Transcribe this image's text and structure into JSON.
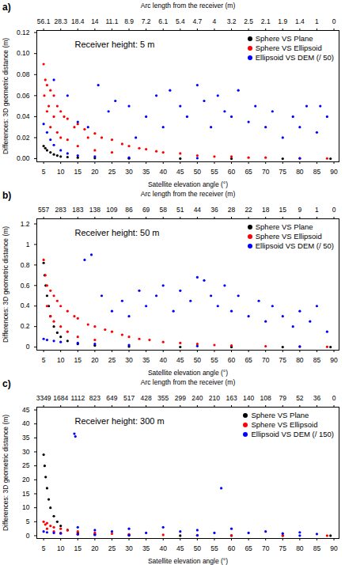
{
  "chart_data": [
    {
      "type": "scatter",
      "title": "a)",
      "annotations": [
        "Receiver height: 5 m"
      ],
      "xlabel": "Satellite elevation angle (°)",
      "ylabel": "Differences: 3D geometric distance (m)",
      "x2label": "Arc length from the receiver (m)",
      "x2ticks": [
        {
          "value": 5,
          "label": "56.1"
        },
        {
          "value": 10,
          "label": "28.3"
        },
        {
          "value": 15,
          "label": "18.4"
        },
        {
          "value": 20,
          "label": "14"
        },
        {
          "value": 25,
          "label": "11.1"
        },
        {
          "value": 30,
          "label": "8.9"
        },
        {
          "value": 35,
          "label": "7.2"
        },
        {
          "value": 40,
          "label": "6.1"
        },
        {
          "value": 45,
          "label": "5.4"
        },
        {
          "value": 50,
          "label": "4.7"
        },
        {
          "value": 55,
          "label": "4"
        },
        {
          "value": 60,
          "label": "3.2"
        },
        {
          "value": 65,
          "label": "2.5"
        },
        {
          "value": 70,
          "label": "2.1"
        },
        {
          "value": 75,
          "label": "1.9"
        },
        {
          "value": 80,
          "label": "1.4"
        },
        {
          "value": 85,
          "label": "1"
        },
        {
          "value": 90,
          "label": "0"
        }
      ],
      "xlim": [
        3,
        91.5
      ],
      "xticks": [
        5,
        10,
        15,
        20,
        25,
        30,
        35,
        40,
        45,
        50,
        55,
        60,
        65,
        70,
        75,
        80,
        85,
        90
      ],
      "ylim": [
        -0.003,
        0.122
      ],
      "yticks": [
        {
          "value": 0,
          "label": "0.00"
        },
        0.02,
        0.04,
        0.06,
        0.08,
        {
          "value": 0.1,
          "label": "0.10"
        },
        0.12
      ],
      "legend": "top-right",
      "series": [
        {
          "name": "Sphere VS Plane",
          "color": "#000000",
          "marker": "circle",
          "x": [
            5,
            5.5,
            6,
            7,
            8,
            9,
            10,
            12,
            15,
            20,
            30,
            45,
            60,
            75,
            89
          ],
          "values": [
            0.012,
            0.01,
            0.008,
            0.006,
            0.004,
            0.003,
            0.002,
            0.0015,
            0.001,
            0.0005,
            0.0002,
            0.0001,
            0,
            0,
            0
          ]
        },
        {
          "name": "Sphere VS Ellipsoid",
          "color": "#ff0000",
          "marker": "circle",
          "x": [
            5,
            5.2,
            5.5,
            6,
            6,
            6.5,
            7,
            7,
            8,
            8,
            9,
            9,
            10,
            10,
            11,
            12,
            12,
            14,
            15,
            15,
            17,
            18,
            20,
            20,
            22,
            25,
            25,
            28,
            30,
            33,
            35,
            38,
            40,
            45,
            50,
            55,
            60,
            65,
            70,
            80,
            88
          ],
          "values": [
            0.09,
            0.06,
            0.075,
            0.07,
            0.045,
            0.05,
            0.065,
            0.03,
            0.06,
            0.04,
            0.05,
            0.025,
            0.045,
            0.02,
            0.04,
            0.038,
            0.018,
            0.03,
            0.033,
            0.012,
            0.028,
            0.02,
            0.024,
            0.008,
            0.02,
            0.018,
            0.006,
            0.014,
            0.012,
            0.01,
            0.009,
            0.007,
            0.006,
            0.005,
            0.003,
            0.002,
            0.002,
            0.001,
            0.001,
            0.0005,
            0.0002
          ]
        },
        {
          "name": "Ellipsoid VS DEM (/ 50)",
          "color": "#0000ff",
          "marker": "circle",
          "x": [
            5,
            6,
            7,
            8,
            10,
            12,
            15,
            20,
            30,
            50,
            80,
            8,
            12,
            15,
            18,
            21,
            24,
            26,
            30,
            32,
            35,
            38,
            40,
            42,
            45,
            47,
            50,
            52,
            54,
            56,
            58,
            60,
            62,
            65,
            67,
            70,
            72,
            75,
            78,
            80,
            82,
            85,
            86,
            88
          ],
          "values": [
            0.033,
            0.025,
            0.018,
            0.013,
            0.008,
            0.005,
            0.003,
            0.002,
            0.001,
            0.0005,
            0.0002,
            0.075,
            0.06,
            0.035,
            0.03,
            0.07,
            0.045,
            0.055,
            0.05,
            0.02,
            0.04,
            0.06,
            0.03,
            0.065,
            0.05,
            0.04,
            0.07,
            0.055,
            0.03,
            0.06,
            0.045,
            0.04,
            0.065,
            0.035,
            0.05,
            0.03,
            0.045,
            0.02,
            0.04,
            0.03,
            0.05,
            0.025,
            0.05,
            0.04
          ]
        }
      ]
    },
    {
      "type": "scatter",
      "title": "b)",
      "annotations": [
        "Receiver height: 50 m"
      ],
      "xlabel": "Satellite elevation angle (°)",
      "ylabel": "Differences: 3D geometric distance (m)",
      "x2label": "Arc length from the receiver (m)",
      "x2ticks": [
        {
          "value": 5,
          "label": "557"
        },
        {
          "value": 10,
          "label": "283"
        },
        {
          "value": 15,
          "label": "183"
        },
        {
          "value": 20,
          "label": "138"
        },
        {
          "value": 25,
          "label": "109"
        },
        {
          "value": 30,
          "label": "86"
        },
        {
          "value": 35,
          "label": "69"
        },
        {
          "value": 40,
          "label": "58"
        },
        {
          "value": 45,
          "label": "51"
        },
        {
          "value": 50,
          "label": "44"
        },
        {
          "value": 55,
          "label": "36"
        },
        {
          "value": 60,
          "label": "28"
        },
        {
          "value": 65,
          "label": "22"
        },
        {
          "value": 70,
          "label": "18"
        },
        {
          "value": 75,
          "label": "15"
        },
        {
          "value": 80,
          "label": "9"
        },
        {
          "value": 85,
          "label": "1"
        },
        {
          "value": 90,
          "label": "0"
        }
      ],
      "xlim": [
        3,
        91.5
      ],
      "xticks": [
        5,
        10,
        15,
        20,
        25,
        30,
        35,
        40,
        45,
        50,
        55,
        60,
        65,
        70,
        75,
        80,
        85,
        90
      ],
      "ylim": [
        -0.03,
        1.25
      ],
      "yticks": [
        0,
        0.2,
        0.4,
        0.6,
        0.8,
        1,
        1.2
      ],
      "legend": "top-right",
      "series": [
        {
          "name": "Sphere VS Plane",
          "color": "#000000",
          "marker": "circle",
          "x": [
            5,
            5.3,
            5.6,
            6,
            6.5,
            7,
            8,
            9,
            10,
            12,
            15,
            20,
            30,
            45,
            60,
            75,
            89
          ],
          "values": [
            0.82,
            0.7,
            0.6,
            0.5,
            0.4,
            0.3,
            0.2,
            0.14,
            0.1,
            0.06,
            0.03,
            0.015,
            0.005,
            0.001,
            0,
            0,
            0
          ]
        },
        {
          "name": "Sphere VS Ellipsoid",
          "color": "#ff0000",
          "marker": "circle",
          "x": [
            5,
            5.5,
            6,
            6,
            7,
            7,
            8,
            8,
            9,
            10,
            10,
            12,
            12,
            14,
            15,
            15,
            18,
            20,
            20,
            23,
            25,
            28,
            30,
            33,
            36,
            40,
            45,
            50,
            55,
            60,
            70,
            80,
            88
          ],
          "values": [
            0.85,
            0.7,
            0.6,
            0.4,
            0.55,
            0.3,
            0.5,
            0.25,
            0.45,
            0.4,
            0.2,
            0.35,
            0.15,
            0.3,
            0.28,
            0.1,
            0.22,
            0.2,
            0.07,
            0.17,
            0.15,
            0.12,
            0.1,
            0.08,
            0.07,
            0.05,
            0.04,
            0.03,
            0.02,
            0.015,
            0.008,
            0.004,
            0.002
          ]
        },
        {
          "name": "Ellipsoid VS DEM (/ 50)",
          "color": "#0000ff",
          "marker": "circle",
          "x": [
            5,
            6,
            8,
            10,
            15,
            20,
            30,
            50,
            80,
            17,
            19,
            22,
            25,
            28,
            30,
            33,
            35,
            38,
            40,
            43,
            45,
            48,
            50,
            52,
            54,
            56,
            58,
            60,
            62,
            65,
            68,
            70,
            72,
            75,
            78,
            80,
            83,
            85,
            88
          ],
          "values": [
            0.08,
            0.07,
            0.06,
            0.05,
            0.04,
            0.03,
            0.02,
            0.01,
            0.005,
            0.85,
            0.9,
            0.5,
            0.35,
            0.45,
            0.3,
            0.55,
            0.4,
            0.5,
            0.6,
            0.35,
            0.55,
            0.45,
            0.68,
            0.65,
            0.5,
            0.4,
            0.6,
            0.35,
            0.5,
            0.3,
            0.45,
            0.25,
            0.4,
            0.3,
            0.2,
            0.35,
            0.25,
            0.4,
            0.15
          ]
        }
      ]
    },
    {
      "type": "scatter",
      "title": "c)",
      "annotations": [
        "Receiver height: 300 m"
      ],
      "xlabel": "Satellite elevation angle (°)",
      "ylabel": "Differences: 3D geometric distance (m)",
      "x2label": "Arc length from the receiver (m)",
      "x2ticks": [
        {
          "value": 5,
          "label": "3349"
        },
        {
          "value": 10,
          "label": "1684"
        },
        {
          "value": 15,
          "label": "1112"
        },
        {
          "value": 20,
          "label": "823"
        },
        {
          "value": 25,
          "label": "649"
        },
        {
          "value": 30,
          "label": "517"
        },
        {
          "value": 35,
          "label": "428"
        },
        {
          "value": 40,
          "label": "355"
        },
        {
          "value": 45,
          "label": "299"
        },
        {
          "value": 50,
          "label": "240"
        },
        {
          "value": 55,
          "label": "210"
        },
        {
          "value": 60,
          "label": "163"
        },
        {
          "value": 65,
          "label": "140"
        },
        {
          "value": 70,
          "label": "108"
        },
        {
          "value": 75,
          "label": "79"
        },
        {
          "value": 80,
          "label": "52"
        },
        {
          "value": 85,
          "label": "36"
        },
        {
          "value": 90,
          "label": "0"
        }
      ],
      "xlim": [
        3,
        91.5
      ],
      "xticks": [
        5,
        10,
        15,
        20,
        25,
        30,
        35,
        40,
        45,
        50,
        55,
        60,
        65,
        70,
        75,
        80,
        85,
        90
      ],
      "ylim": [
        -1,
        46
      ],
      "yticks": [
        0,
        5,
        10,
        15,
        20,
        25,
        30,
        35,
        40,
        45
      ],
      "legend": "top-right",
      "series": [
        {
          "name": "Sphere VS Plane",
          "color": "#000000",
          "marker": "circle",
          "x": [
            5,
            5.3,
            5.6,
            6,
            6.5,
            7,
            8,
            9,
            10,
            12,
            15,
            20,
            30,
            45,
            60,
            75,
            89
          ],
          "values": [
            29,
            25,
            21,
            17,
            13,
            10,
            7,
            5,
            3.5,
            2,
            1,
            0.5,
            0.1,
            0,
            0,
            0,
            0
          ]
        },
        {
          "name": "Sphere VS Ellipsoid",
          "color": "#ff0000",
          "marker": "circle",
          "x": [
            5,
            5.5,
            6,
            6,
            7,
            8,
            8,
            10,
            10,
            12,
            15,
            15,
            20,
            25,
            30,
            40,
            50,
            60,
            75,
            88
          ],
          "values": [
            5,
            4,
            4.5,
            2.5,
            3.5,
            3,
            1.5,
            2.5,
            1,
            2,
            1.5,
            0.5,
            1,
            0.7,
            0.5,
            0.3,
            0.15,
            0.1,
            0.05,
            0
          ]
        },
        {
          "name": "Ellipsoid VS DEM (/ 150)",
          "color": "#0000ff",
          "marker": "circle",
          "x": [
            5,
            6,
            8,
            10,
            15,
            20,
            30,
            50,
            80,
            14,
            14.3,
            57,
            15,
            20,
            25,
            30,
            35,
            40,
            45,
            50,
            55,
            60,
            65,
            70,
            75,
            80,
            85
          ],
          "values": [
            1.5,
            1.2,
            1,
            0.8,
            0.5,
            0.3,
            0.2,
            0.1,
            0.05,
            36.5,
            35.5,
            17,
            3,
            2,
            1.5,
            2.5,
            1,
            3,
            1.5,
            2,
            1,
            2.5,
            1,
            1.5,
            0.8,
            1.2,
            0.6
          ]
        }
      ]
    }
  ]
}
